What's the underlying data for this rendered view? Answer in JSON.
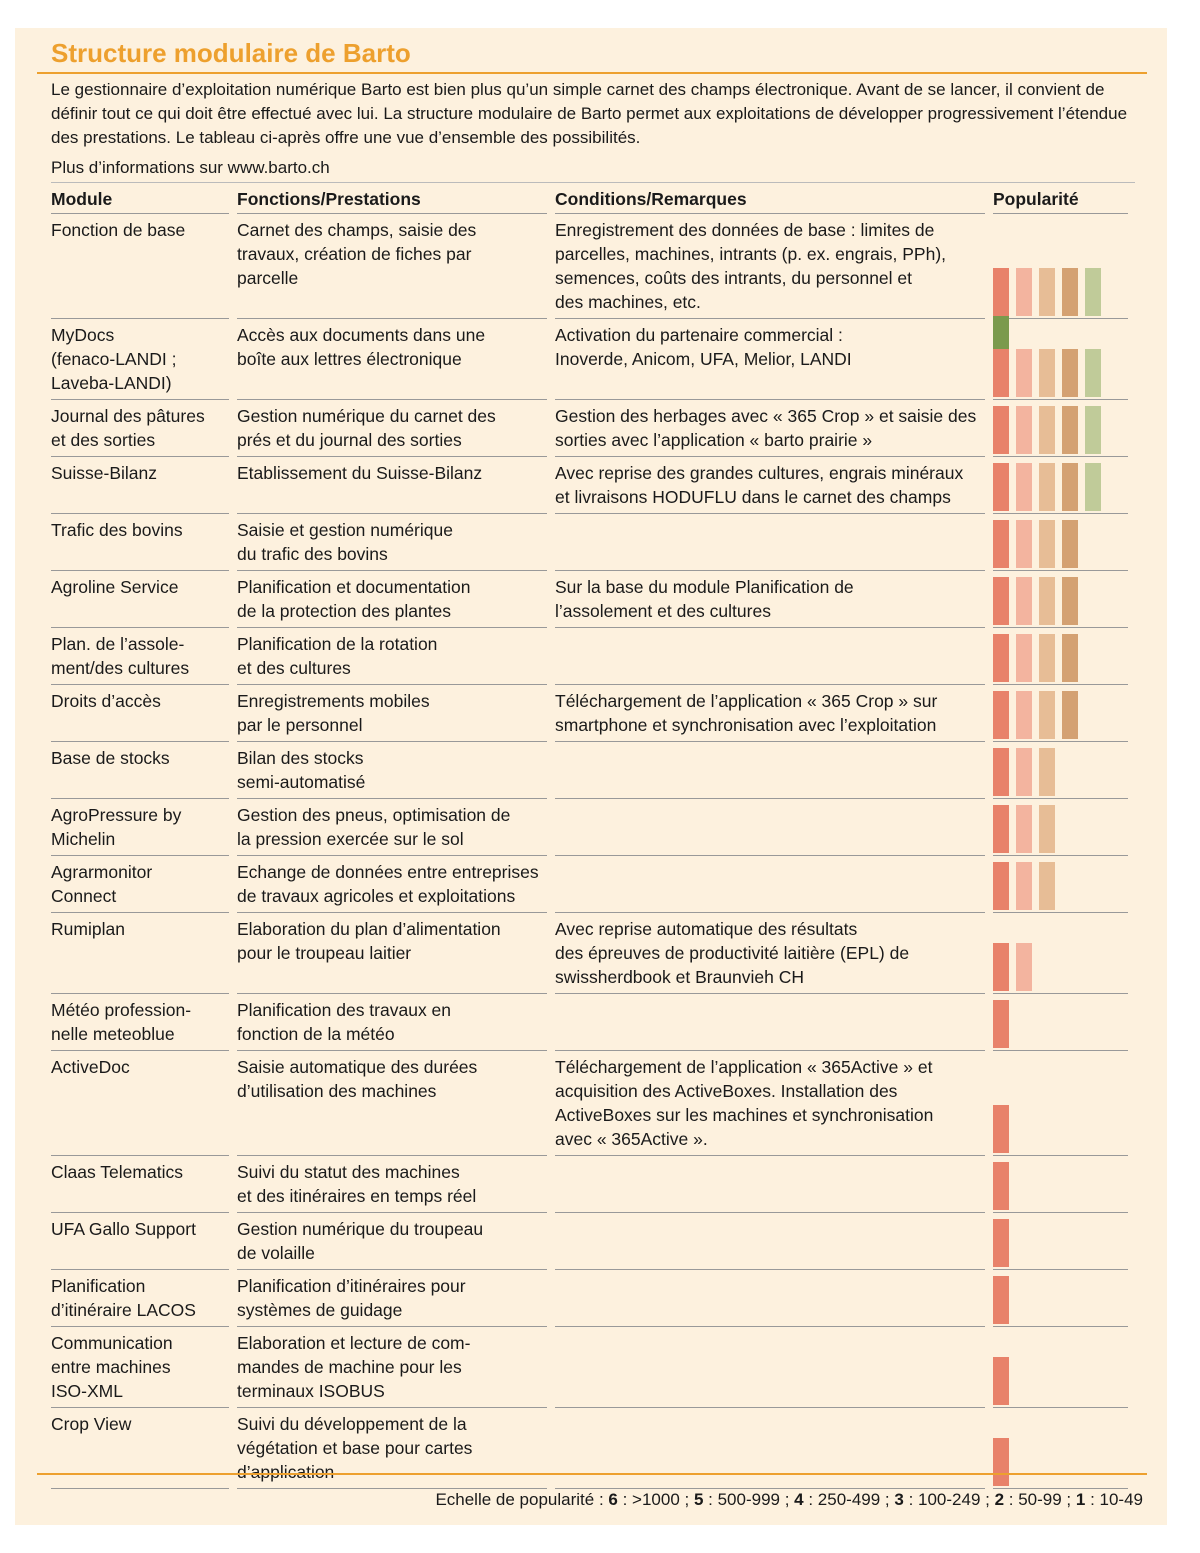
{
  "header": {
    "title": "Structure modulaire de Barto",
    "intro": "Le gestionnaire d’exploitation numérique Barto est bien plus qu’un simple carnet des champs électronique. Avant de se lancer, il convient de définir tout ce qui doit être effectué avec lui. La structure modulaire de Barto permet aux exploitations de développer progressivement l’étendue des prestations. Le tableau ci-après offre une vue d’ensemble des possibilités.",
    "more_info": "Plus d’informations sur www.barto.ch"
  },
  "table": {
    "columns": [
      "Module",
      "Fonctions/Prestations",
      "Conditions/Remarques",
      "Popularité"
    ],
    "popularity_colors": [
      "#e8826a",
      "#f3b49f",
      "#e7bd96",
      "#d4a172",
      "#c0cb99",
      "#7b9a4d"
    ],
    "rows": [
      {
        "module": "Fonction de base",
        "functions": "Carnet des champs, saisie des\ntravaux, création de fiches par\nparcelle",
        "conditions": "Enregistrement des données de base : limites de\nparcelles, machines, intrants (p. ex. engrais, PPh),\nsemences, coûts des intrants, du personnel et\ndes machines, etc.",
        "popularity": 6
      },
      {
        "module": "MyDocs\n(fenaco-LANDI ;\nLaveba-LANDI)",
        "functions": "Accès aux documents dans une\nboîte aux lettres électronique",
        "conditions": "Activation du partenaire commercial :\nInoverde, Anicom, UFA, Melior, LANDI",
        "popularity": 5
      },
      {
        "module": "Journal des pâtures\net des sorties",
        "functions": "Gestion numérique du carnet des\nprés et du journal des sorties",
        "conditions": "Gestion des herbages avec « 365 Crop » et saisie des\nsorties avec l’application « barto prairie »",
        "popularity": 5
      },
      {
        "module": "Suisse-Bilanz",
        "functions": "Etablissement du Suisse-Bilanz",
        "conditions": "Avec reprise des grandes cultures, engrais minéraux\net livraisons HODUFLU dans le carnet des champs",
        "popularity": 5
      },
      {
        "module": "Trafic des bovins",
        "functions": "Saisie et gestion numérique\ndu trafic des bovins",
        "popularity": 4
      },
      {
        "module": "Agroline Service",
        "functions": "Planification et documentation\nde la protection des plantes",
        "conditions": "Sur la base du module Planification de\nl’assolement et des cultures",
        "popularity": 4
      },
      {
        "module": "Plan. de l’assole-\nment/des cultures",
        "functions": "Planification de la rotation\net des cultures",
        "popularity": 4
      },
      {
        "module": "Droits d’accès",
        "functions": "Enregistrements mobiles\npar le personnel",
        "conditions": "Téléchargement de l’application « 365 Crop » sur\nsmartphone et synchronisation avec l’exploitation",
        "popularity": 4
      },
      {
        "module": "Base de stocks",
        "functions": "Bilan des stocks\nsemi-automatisé",
        "popularity": 3
      },
      {
        "module": "AgroPressure by\nMichelin",
        "functions": "Gestion des pneus, optimisation de\nla pression exercée sur le sol",
        "popularity": 3
      },
      {
        "module": "Agrarmonitor\nConnect",
        "functions": "Echange de données entre entreprises\nde travaux agricoles et exploitations",
        "popularity": 3
      },
      {
        "module": "Rumiplan",
        "functions": "Elaboration du plan d’alimentation\npour le troupeau laitier",
        "conditions": "Avec reprise automatique des résultats\ndes épreuves de productivité laitière (EPL) de\nswissherdbook et Braunvieh CH",
        "popularity": 2
      },
      {
        "module": "Météo profession-\nnelle meteoblue",
        "functions": "Planification des travaux en\nfonction de la météo",
        "popularity": 1
      },
      {
        "module": "ActiveDoc",
        "functions": "Saisie automatique des durées\nd’utilisation des machines",
        "conditions": "Téléchargement de l’application « 365Active » et\nacquisition des ActiveBoxes. Installation des\nActiveBoxes sur les machines et synchronisation\navec « 365Active ».",
        "popularity": 1
      },
      {
        "module": "Claas Telematics",
        "functions": "Suivi du statut des machines\net des itinéraires en temps réel",
        "popularity": 1
      },
      {
        "module": "UFA Gallo Support",
        "functions": "Gestion numérique du troupeau\nde volaille",
        "popularity": 1
      },
      {
        "module": "Planification\nd’itinéraire LACOS",
        "functions": "Planification d’itinéraires pour\nsystèmes de guidage",
        "popularity": 1
      },
      {
        "module": "Communication\nentre machines\nISO-XML",
        "functions": "Elaboration et lecture de com-\nmandes de machine pour les\nterminaux ISOBUS",
        "popularity": 1
      },
      {
        "module": "Crop View",
        "functions": "Suivi du développement de la\nvégétation et base pour cartes\nd’application",
        "popularity": 1
      }
    ]
  },
  "scale": {
    "label": "Echelle de popularité :",
    "items": [
      {
        "level": 6,
        "range": " : >1000 ; "
      },
      {
        "level": 5,
        "range": " : 500-999 ; "
      },
      {
        "level": 4,
        "range": " : 250-499 ; "
      },
      {
        "level": 3,
        "range": " : 100-249 ; "
      },
      {
        "level": 2,
        "range": " : 50-99 ; "
      },
      {
        "level": 1,
        "range": " : 10-49"
      }
    ]
  }
}
